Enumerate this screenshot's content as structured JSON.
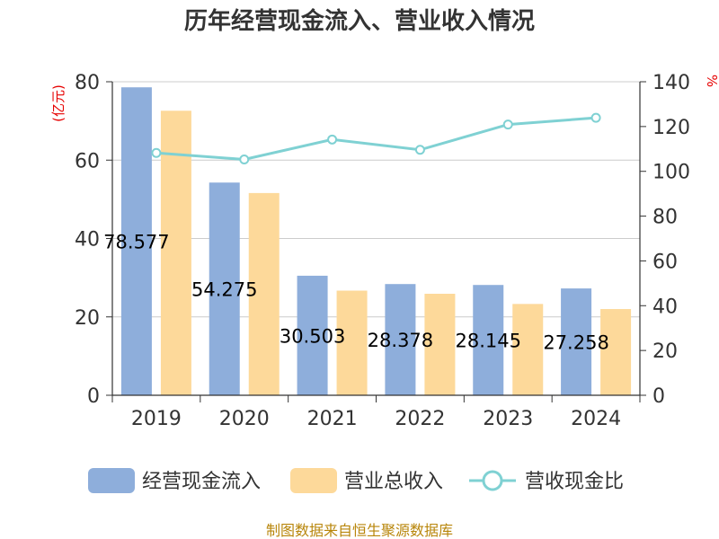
{
  "title": "历年经营现金流入、营业收入情况",
  "source": "制图数据来自恒生聚源数据库",
  "colors": {
    "operating_cash_inflow": "#8eaedb",
    "total_revenue": "#fdd99a",
    "ratio": "#7fd1d3",
    "axis": "#333333",
    "grid": "#cccccc",
    "unit": "#e60000",
    "source": "#b8860b"
  },
  "chart_data": {
    "type": "bar",
    "title": "历年经营现金流入、营业收入情况",
    "categories": [
      "2019",
      "2020",
      "2021",
      "2022",
      "2023",
      "2024"
    ],
    "y_left": {
      "unit": "(亿元)",
      "range": [
        0,
        80
      ],
      "ticks": [
        "0",
        "20",
        "40",
        "60",
        "80"
      ]
    },
    "y_right": {
      "unit": "%",
      "range": [
        0,
        140
      ],
      "ticks": [
        "0",
        "20",
        "40",
        "60",
        "80",
        "100",
        "120",
        "140"
      ]
    },
    "grid": true,
    "legend_position": "bottom",
    "series": [
      {
        "name": "经营现金流入",
        "kind": "bar",
        "axis": "left",
        "values": [
          78.577,
          54.275,
          30.503,
          28.378,
          28.145,
          27.258
        ],
        "labels": [
          "78.577",
          "54.275",
          "30.503",
          "28.378",
          "28.145",
          "27.258"
        ]
      },
      {
        "name": "营业总收入",
        "kind": "bar",
        "axis": "left",
        "values": [
          72.6,
          51.6,
          26.7,
          25.9,
          23.3,
          22.0
        ]
      },
      {
        "name": "营收现金比",
        "kind": "line",
        "axis": "right",
        "values": [
          108.2,
          105.3,
          114.2,
          109.6,
          120.9,
          123.9
        ]
      }
    ]
  }
}
